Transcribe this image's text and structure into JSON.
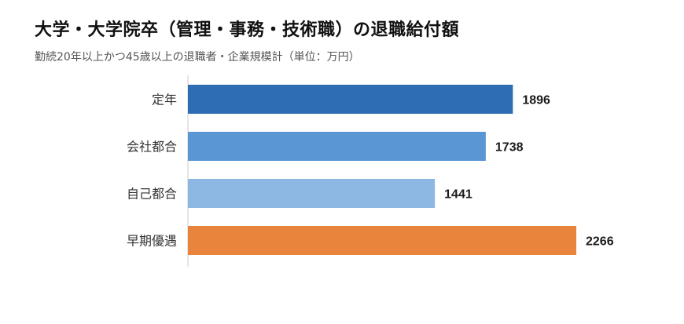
{
  "chart_data": {
    "type": "bar",
    "orientation": "horizontal",
    "title": "大学・大学院卒（管理・事務・技術職）の退職給付額",
    "subtitle": "勤続20年以上かつ45歳以上の退職者・企業規模計（単位：万円）",
    "categories": [
      "定年",
      "会社都合",
      "自己都合",
      "早期優遇"
    ],
    "values": [
      1896,
      1738,
      1441,
      2266
    ],
    "bar_colors": [
      "#2e6db4",
      "#5a96d4",
      "#8db8e4",
      "#e8843c"
    ],
    "xlim": [
      0,
      2266
    ],
    "grid": false,
    "legend": "none"
  }
}
